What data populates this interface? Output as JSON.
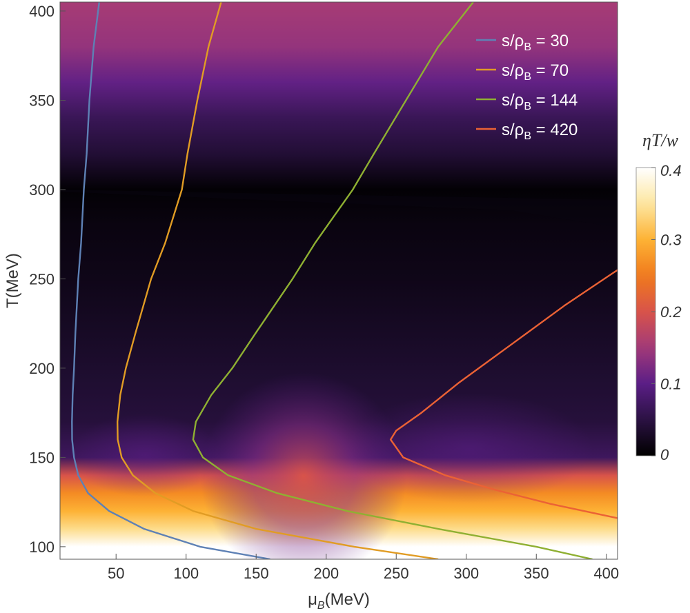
{
  "chart_data": {
    "type": "heatmap",
    "title": "",
    "xlabel_main": "μ",
    "xlabel_sub": "B",
    "xlabel_unit": "(MeV)",
    "ylabel": "T(MeV)",
    "xlim": [
      10,
      408
    ],
    "ylim": [
      93,
      405
    ],
    "x_ticks": [
      50,
      100,
      150,
      200,
      250,
      300,
      350,
      400
    ],
    "y_ticks": [
      100,
      150,
      200,
      250,
      300,
      350,
      400
    ],
    "colorbar": {
      "title": "ηT/w",
      "range": [
        0,
        0.4
      ],
      "ticks": [
        0,
        0.1,
        0.2,
        0.3,
        0.4
      ],
      "tick_labels": [
        "0",
        "0.1",
        "0.2",
        "0.3",
        "0.4"
      ],
      "colormap": [
        "#000000",
        "#2a1242",
        "#5b1e86",
        "#a23a7a",
        "#d8534a",
        "#f07a1c",
        "#fdb235",
        "#fde7a0",
        "#ffffff"
      ]
    },
    "background_profile": {
      "T": [
        405,
        380,
        360,
        340,
        320,
        300,
        280,
        250,
        200,
        170,
        150,
        140,
        130,
        120,
        110,
        100,
        93
      ],
      "value": [
        0.155,
        0.14,
        0.105,
        0.065,
        0.04,
        0.004,
        0.012,
        0.018,
        0.035,
        0.045,
        0.07,
        0.2,
        0.265,
        0.3,
        0.34,
        0.4,
        0.4
      ]
    },
    "series": [
      {
        "name": "s/ρB = 30",
        "legend_main": "s/ρ",
        "legend_sub": "B",
        "legend_value": " = 30",
        "color": "#5e81b5",
        "points": [
          [
            38,
            405
          ],
          [
            34,
            380
          ],
          [
            31,
            350
          ],
          [
            29,
            320
          ],
          [
            27,
            300
          ],
          [
            25,
            270
          ],
          [
            23,
            250
          ],
          [
            21,
            220
          ],
          [
            20,
            200
          ],
          [
            19,
            185
          ],
          [
            18.5,
            170
          ],
          [
            18.6,
            160
          ],
          [
            20,
            150
          ],
          [
            23,
            140
          ],
          [
            30,
            130
          ],
          [
            45,
            120
          ],
          [
            70,
            110
          ],
          [
            110,
            100
          ],
          [
            160,
            93
          ]
        ]
      },
      {
        "name": "s/ρB = 70",
        "legend_main": "s/ρ",
        "legend_sub": "B",
        "legend_value": " = 70",
        "color": "#e19c24",
        "points": [
          [
            125,
            405
          ],
          [
            116,
            380
          ],
          [
            108,
            350
          ],
          [
            101,
            320
          ],
          [
            97,
            300
          ],
          [
            85,
            270
          ],
          [
            75,
            250
          ],
          [
            64,
            220
          ],
          [
            57,
            200
          ],
          [
            53,
            185
          ],
          [
            51,
            170
          ],
          [
            51.2,
            160
          ],
          [
            54,
            150
          ],
          [
            62,
            140
          ],
          [
            78,
            130
          ],
          [
            105,
            120
          ],
          [
            150,
            110
          ],
          [
            220,
            100
          ],
          [
            280,
            93
          ]
        ]
      },
      {
        "name": "s/ρB = 144",
        "legend_main": "s/ρ",
        "legend_sub": "B",
        "legend_value": " = 144",
        "color": "#8fb032",
        "points": [
          [
            305,
            405
          ],
          [
            280,
            380
          ],
          [
            257,
            350
          ],
          [
            234,
            320
          ],
          [
            219,
            300
          ],
          [
            192,
            270
          ],
          [
            176,
            250
          ],
          [
            150,
            220
          ],
          [
            133,
            200
          ],
          [
            118,
            185
          ],
          [
            107,
            170
          ],
          [
            105,
            160
          ],
          [
            112,
            150
          ],
          [
            130,
            140
          ],
          [
            165,
            130
          ],
          [
            215,
            120
          ],
          [
            280,
            110
          ],
          [
            350,
            100
          ],
          [
            390,
            93
          ]
        ]
      },
      {
        "name": "s/ρB = 420",
        "legend_main": "s/ρ",
        "legend_sub": "B",
        "legend_value": " = 420",
        "color": "#eb6235",
        "points": [
          [
            408,
            255
          ],
          [
            370,
            235
          ],
          [
            330,
            212
          ],
          [
            295,
            192
          ],
          [
            268,
            175
          ],
          [
            250,
            165
          ],
          [
            246,
            160
          ],
          [
            255,
            150
          ],
          [
            285,
            140
          ],
          [
            320,
            132
          ],
          [
            360,
            124
          ],
          [
            408,
            116
          ]
        ]
      }
    ]
  }
}
